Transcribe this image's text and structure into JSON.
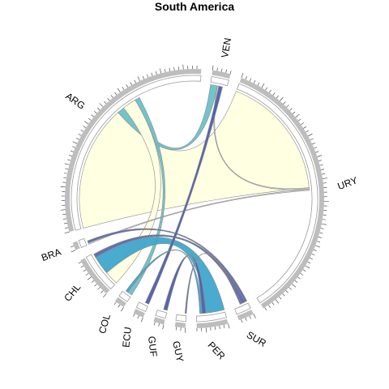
{
  "chart_data": {
    "type": "chord",
    "title": "South America",
    "sectors": [
      {
        "code": "VEN",
        "size": 3.5,
        "labelRot": -80
      },
      {
        "code": "URY",
        "size": 54,
        "labelRot": -20
      },
      {
        "code": "SUR",
        "size": 3,
        "labelRot": 30
      },
      {
        "code": "PER",
        "size": 6,
        "labelRot": 47
      },
      {
        "code": "GUY",
        "size": 2,
        "labelRot": 78
      },
      {
        "code": "GUF",
        "size": 2,
        "labelRot": 84
      },
      {
        "code": "ECU",
        "size": 2,
        "labelRot": -84
      },
      {
        "code": "COL",
        "size": 2,
        "labelRot": -74
      },
      {
        "code": "CHL",
        "size": 8,
        "labelRot": -50
      },
      {
        "code": "BRA",
        "size": 1.5,
        "labelRot": -20
      },
      {
        "code": "ARG",
        "size": 46,
        "labelRot": 35
      }
    ],
    "links": [
      {
        "from": "ARG",
        "to": "URY",
        "value": 27,
        "color": "#ffffe0"
      },
      {
        "from": "ARG",
        "to": "VEN",
        "value": 1.5,
        "color": "#6cc0c8"
      },
      {
        "from": "ARG",
        "to": "CHL",
        "value": 3,
        "color": "#ffffe0"
      },
      {
        "from": "ARG",
        "to": "COL",
        "value": 1,
        "color": "#6cc0c8"
      },
      {
        "from": "URY",
        "to": "VEN",
        "value": 0.3,
        "color": "#cfcfcf"
      },
      {
        "from": "URY",
        "to": "BRA",
        "value": 0.3,
        "color": "#cfcfcf"
      },
      {
        "from": "BRA",
        "to": "SUR",
        "value": 0.5,
        "color": "#5b68a8"
      },
      {
        "from": "CHL",
        "to": "PER",
        "value": 4,
        "color": "#3ea6cc"
      },
      {
        "from": "CHL",
        "to": "SUR",
        "value": 0.8,
        "color": "#5b68a8"
      },
      {
        "from": "ECU",
        "to": "VEN",
        "value": 0.8,
        "color": "#4e5ea8"
      },
      {
        "from": "GUF",
        "to": "PER",
        "value": 0.8,
        "color": "#4e5ea8"
      },
      {
        "from": "GUY",
        "to": "SUR",
        "value": 0.3,
        "color": "#5b68a8"
      },
      {
        "from": "COL",
        "to": "PER",
        "value": 0.5,
        "color": "#3ea6cc"
      }
    ]
  }
}
